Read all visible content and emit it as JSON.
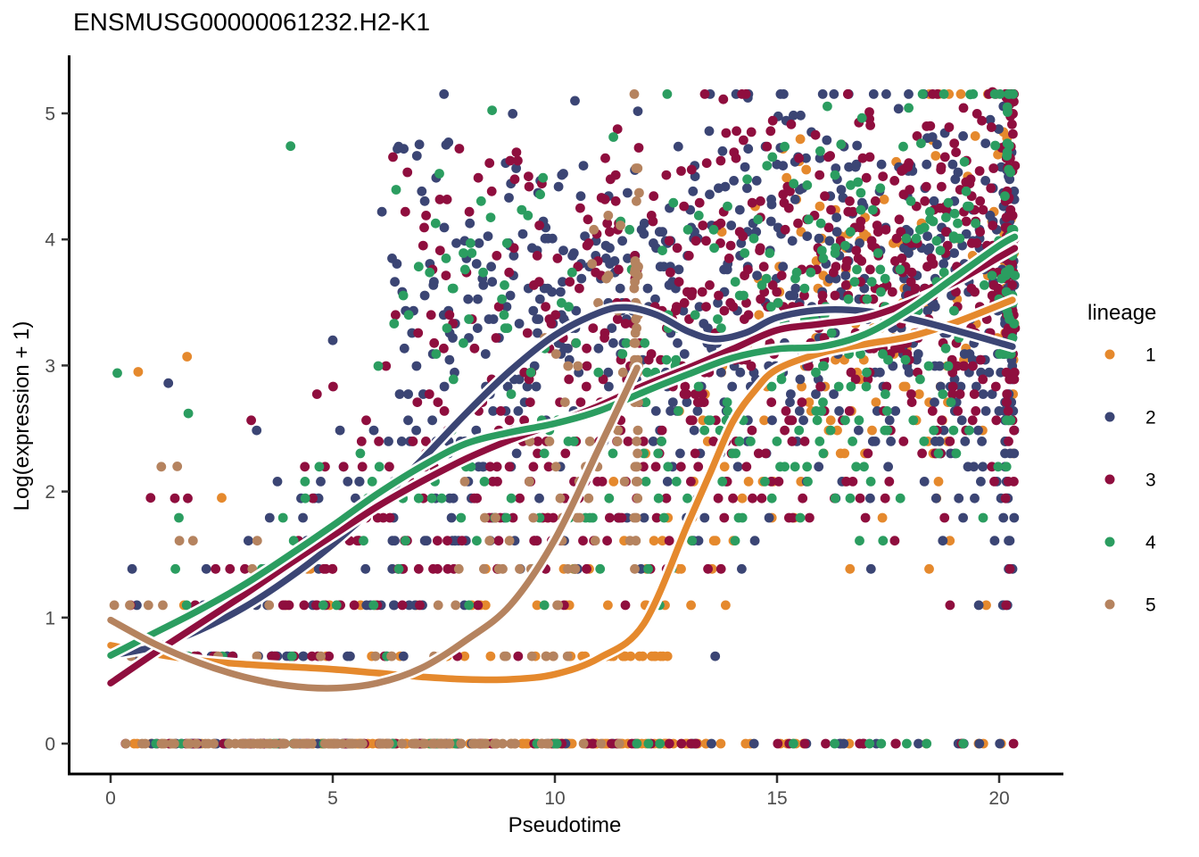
{
  "chart_data": {
    "type": "scatter",
    "title": "ENSMUSG00000061232.H2-K1",
    "xlabel": "Pseudotime",
    "ylabel": "Log(expression + 1)",
    "xlim": [
      -0.6,
      21.4
    ],
    "ylim": [
      -0.15,
      5.35
    ],
    "xticks": [
      0,
      5,
      10,
      15,
      20
    ],
    "yticks": [
      0,
      1,
      2,
      3,
      4,
      5
    ],
    "grid": false,
    "legend_title": "lineage",
    "legend_position": "right",
    "point_y_encoding": "log(count+1) with integer counts, so points fall on discrete horizontal rows",
    "series": [
      {
        "name": "1",
        "color": "#E5892D",
        "smoother": [
          [
            0,
            0.78
          ],
          [
            1,
            0.71
          ],
          [
            2,
            0.66
          ],
          [
            3,
            0.63
          ],
          [
            4,
            0.61
          ],
          [
            5,
            0.59
          ],
          [
            6,
            0.56
          ],
          [
            7,
            0.53
          ],
          [
            8,
            0.51
          ],
          [
            9,
            0.51
          ],
          [
            10,
            0.55
          ],
          [
            11,
            0.68
          ],
          [
            12,
            0.95
          ],
          [
            13,
            1.75
          ],
          [
            13.5,
            2.15
          ],
          [
            14,
            2.55
          ],
          [
            14.5,
            2.8
          ],
          [
            15,
            2.97
          ],
          [
            16,
            3.1
          ],
          [
            17,
            3.17
          ],
          [
            18,
            3.23
          ],
          [
            19,
            3.34
          ],
          [
            20.3,
            3.52
          ]
        ],
        "scatter_model": {
          "n": 330,
          "x_max": 20.3,
          "x_pow": 0.6
        },
        "clusters": [
          {
            "x": [
              14,
              20.3
            ],
            "v": [
              3.4,
              4.6
            ],
            "n": 20
          }
        ],
        "terminal_pileup": {
          "x": 20.22,
          "spread": 0.25,
          "n": 25
        },
        "outliers": [
          [
            0.62,
            2.95
          ],
          [
            1.72,
            3.07
          ],
          [
            15.5,
            4.62
          ],
          [
            2.5,
            1.95
          ],
          [
            13.4,
            0.0
          ],
          [
            14.4,
            0.0
          ],
          [
            15.6,
            0.0
          ],
          [
            16.5,
            0.0
          ]
        ]
      },
      {
        "name": "2",
        "color": "#3B4574",
        "smoother": [
          [
            0,
            0.7
          ],
          [
            1,
            0.77
          ],
          [
            2,
            0.9
          ],
          [
            3,
            1.08
          ],
          [
            4,
            1.31
          ],
          [
            5,
            1.58
          ],
          [
            6,
            1.9
          ],
          [
            7,
            2.25
          ],
          [
            8,
            2.62
          ],
          [
            9,
            2.96
          ],
          [
            10,
            3.24
          ],
          [
            11,
            3.42
          ],
          [
            11.6,
            3.46
          ],
          [
            12.3,
            3.4
          ],
          [
            13,
            3.27
          ],
          [
            13.6,
            3.21
          ],
          [
            14.3,
            3.26
          ],
          [
            15,
            3.38
          ],
          [
            16,
            3.44
          ],
          [
            17,
            3.43
          ],
          [
            18,
            3.37
          ],
          [
            19,
            3.28
          ],
          [
            20.3,
            3.15
          ]
        ],
        "scatter_model": {
          "n": 620,
          "x_max": 20.3,
          "x_pow": 0.6
        },
        "clusters": [
          {
            "x": [
              6.3,
              9.9
            ],
            "v": [
              3.2,
              4.78
            ],
            "n": 42
          },
          {
            "x": [
              9.9,
              13.2
            ],
            "v": [
              3.3,
              4.5
            ],
            "n": 30
          },
          {
            "x": [
              14,
              20.3
            ],
            "v": [
              3.5,
              4.9
            ],
            "n": 60
          }
        ],
        "terminal_pileup": {
          "x": 20.22,
          "spread": 0.25,
          "n": 70
        },
        "outliers": [
          [
            1.3,
            2.86
          ],
          [
            7.55,
            4.75
          ],
          [
            11.8,
            4.55
          ],
          [
            5.0,
            3.2
          ]
        ]
      },
      {
        "name": "3",
        "color": "#8F0E3E",
        "smoother": [
          [
            0,
            0.48
          ],
          [
            1,
            0.72
          ],
          [
            2,
            0.95
          ],
          [
            3,
            1.18
          ],
          [
            4,
            1.42
          ],
          [
            5,
            1.65
          ],
          [
            6,
            1.88
          ],
          [
            7,
            2.08
          ],
          [
            8,
            2.26
          ],
          [
            9,
            2.41
          ],
          [
            10,
            2.54
          ],
          [
            11,
            2.68
          ],
          [
            12,
            2.84
          ],
          [
            13,
            2.98
          ],
          [
            14,
            3.13
          ],
          [
            15,
            3.28
          ],
          [
            16,
            3.33
          ],
          [
            17,
            3.38
          ],
          [
            18,
            3.5
          ],
          [
            19,
            3.66
          ],
          [
            20,
            3.86
          ],
          [
            20.35,
            3.93
          ]
        ],
        "scatter_model": {
          "n": 640,
          "x_max": 20.35,
          "x_pow": 0.6
        },
        "clusters": [
          {
            "x": [
              6.3,
              9.9
            ],
            "v": [
              3.2,
              4.7
            ],
            "n": 36
          },
          {
            "x": [
              9.9,
              13.2
            ],
            "v": [
              3.3,
              4.35
            ],
            "n": 18
          },
          {
            "x": [
              14,
              20.35
            ],
            "v": [
              3.5,
              5.0
            ],
            "n": 80
          }
        ],
        "terminal_pileup": {
          "x": 20.25,
          "spread": 0.22,
          "n": 90
        },
        "outliers": [
          [
            19.85,
            5.17
          ],
          [
            18.45,
            4.9
          ],
          [
            0.9,
            1.95
          ],
          [
            7.85,
            4.72
          ]
        ]
      },
      {
        "name": "4",
        "color": "#2B9D60",
        "smoother": [
          [
            0,
            0.7
          ],
          [
            1,
            0.88
          ],
          [
            2,
            1.06
          ],
          [
            3,
            1.26
          ],
          [
            4,
            1.49
          ],
          [
            5,
            1.73
          ],
          [
            6,
            1.98
          ],
          [
            7,
            2.2
          ],
          [
            8,
            2.38
          ],
          [
            9,
            2.47
          ],
          [
            10,
            2.54
          ],
          [
            11,
            2.64
          ],
          [
            12,
            2.79
          ],
          [
            13,
            2.93
          ],
          [
            14,
            3.06
          ],
          [
            15,
            3.13
          ],
          [
            16,
            3.15
          ],
          [
            17,
            3.25
          ],
          [
            18,
            3.45
          ],
          [
            19,
            3.7
          ],
          [
            20,
            3.95
          ],
          [
            20.35,
            4.02
          ]
        ],
        "scatter_model": {
          "n": 320,
          "x_max": 20.35,
          "x_pow": 0.6
        },
        "clusters": [
          {
            "x": [
              6.3,
              9.9
            ],
            "v": [
              3.2,
              4.6
            ],
            "n": 26
          },
          {
            "x": [
              14,
              20.35
            ],
            "v": [
              3.4,
              4.8
            ],
            "n": 30
          }
        ],
        "terminal_pileup": {
          "x": 20.25,
          "spread": 0.22,
          "n": 30
        },
        "outliers": [
          [
            0.15,
            2.94
          ],
          [
            4.05,
            4.74
          ],
          [
            19.35,
            5.15
          ],
          [
            1.75,
            2.62
          ]
        ]
      },
      {
        "name": "5",
        "color": "#B5835F",
        "smoother": [
          [
            0,
            0.98
          ],
          [
            1,
            0.79
          ],
          [
            2,
            0.64
          ],
          [
            3,
            0.53
          ],
          [
            4,
            0.46
          ],
          [
            5,
            0.44
          ],
          [
            6,
            0.48
          ],
          [
            7,
            0.6
          ],
          [
            8,
            0.82
          ],
          [
            9,
            1.1
          ],
          [
            10,
            1.62
          ],
          [
            11,
            2.35
          ],
          [
            11.85,
            2.98
          ]
        ],
        "scatter_model": {
          "n": 185,
          "x_max": 11.9,
          "x_pow": 0.8
        },
        "clusters": [],
        "terminal_pileup": {
          "x": 11.83,
          "spread": 0.1,
          "n": 45
        },
        "outliers": [
          [
            1.5,
            2.2
          ],
          [
            3.3,
            1.61
          ],
          [
            7.4,
            0.0
          ]
        ]
      }
    ]
  }
}
